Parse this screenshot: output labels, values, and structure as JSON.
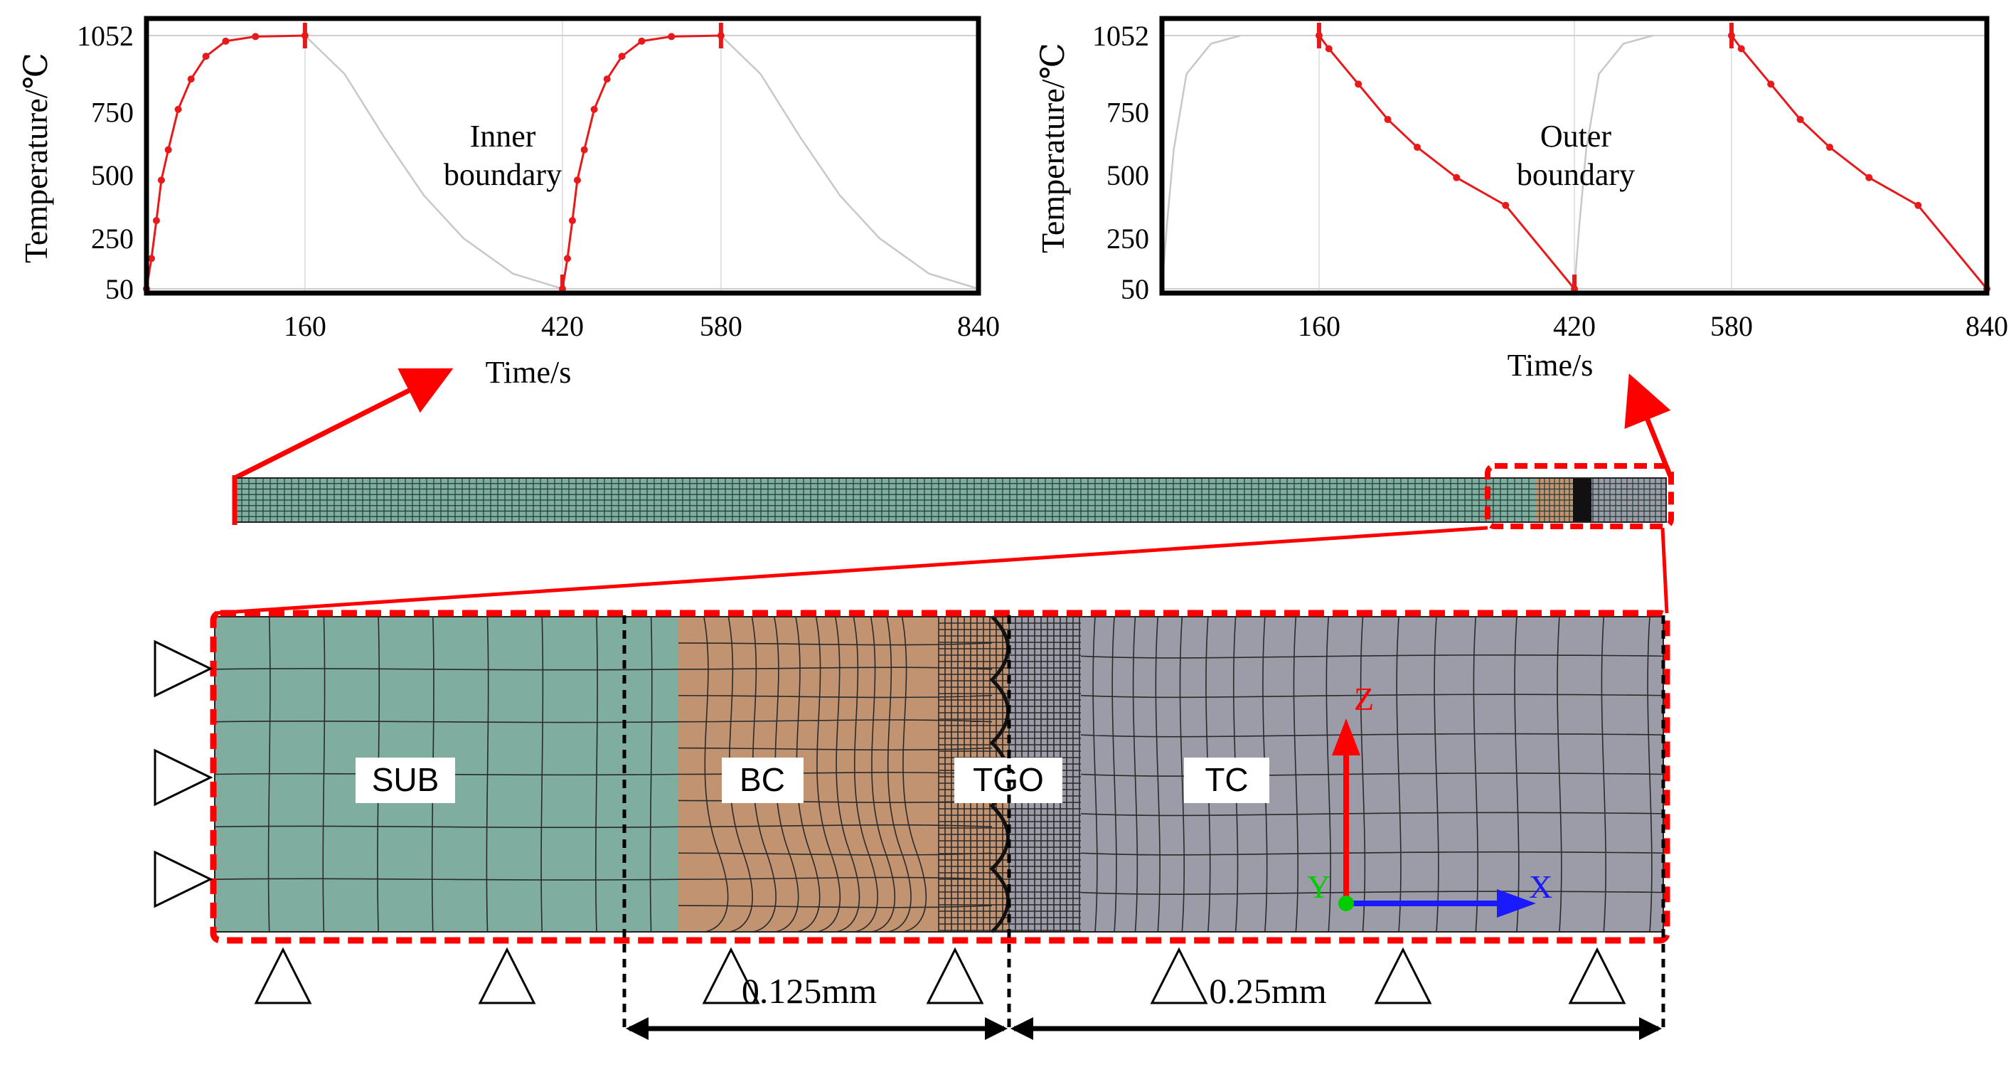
{
  "charts": [
    {
      "id": "inner",
      "ylabel": "Temperature/℃",
      "xlabel": "",
      "annotation": [
        "Inner",
        "boundary"
      ],
      "y_ticks": [
        "1052",
        "750",
        "500",
        "250",
        "50"
      ],
      "x_ticks": [
        "160",
        "420",
        "580",
        "840"
      ]
    },
    {
      "id": "outer",
      "ylabel": "Temperature/℃",
      "xlabel": "Time/s",
      "annotation": [
        "Outer",
        "boundary"
      ],
      "y_ticks": [
        "1052",
        "750",
        "500",
        "250",
        "50"
      ],
      "x_ticks": [
        "160",
        "420",
        "580",
        "840"
      ]
    }
  ],
  "shared_xlabel": "Time/s",
  "chart_data": [
    {
      "type": "line",
      "title": "",
      "xlabel": "Time/s",
      "ylabel": "Temperature/℃",
      "xlim": [
        0,
        840
      ],
      "ylim": [
        50,
        1052
      ],
      "annotation": "Inner boundary",
      "series": [
        {
          "color": "#e8191a",
          "highlight": true,
          "segments": [
            [
              [
                0,
                50
              ],
              [
                5,
                170
              ],
              [
                10,
                320
              ],
              [
                15,
                480
              ],
              [
                22,
                600
              ],
              [
                32,
                760
              ],
              [
                45,
                880
              ],
              [
                60,
                970
              ],
              [
                80,
                1030
              ],
              [
                110,
                1048
              ],
              [
                160,
                1052
              ]
            ],
            [
              [
                420,
                50
              ],
              [
                425,
                170
              ],
              [
                430,
                320
              ],
              [
                435,
                480
              ],
              [
                442,
                600
              ],
              [
                452,
                760
              ],
              [
                465,
                880
              ],
              [
                480,
                970
              ],
              [
                500,
                1030
              ],
              [
                530,
                1048
              ],
              [
                580,
                1052
              ]
            ]
          ]
        },
        {
          "color": "#c8c8c8",
          "highlight": false,
          "segments": [
            [
              [
                160,
                1052
              ],
              [
                200,
                900
              ],
              [
                240,
                650
              ],
              [
                280,
                420
              ],
              [
                320,
                250
              ],
              [
                370,
                110
              ],
              [
                420,
                50
              ]
            ],
            [
              [
                580,
                1052
              ],
              [
                620,
                900
              ],
              [
                660,
                650
              ],
              [
                700,
                420
              ],
              [
                740,
                250
              ],
              [
                790,
                110
              ],
              [
                840,
                50
              ]
            ]
          ]
        }
      ]
    },
    {
      "type": "line",
      "title": "",
      "xlabel": "Time/s",
      "ylabel": "Temperature/℃",
      "xlim": [
        0,
        840
      ],
      "ylim": [
        50,
        1052
      ],
      "annotation": "Outer boundary",
      "series": [
        {
          "color": "#e8191a",
          "highlight": true,
          "segments": [
            [
              [
                160,
                1052
              ],
              [
                170,
                1000
              ],
              [
                200,
                860
              ],
              [
                230,
                720
              ],
              [
                260,
                610
              ],
              [
                300,
                490
              ],
              [
                350,
                380
              ],
              [
                420,
                50
              ]
            ],
            [
              [
                580,
                1052
              ],
              [
                590,
                1000
              ],
              [
                620,
                860
              ],
              [
                650,
                720
              ],
              [
                680,
                610
              ],
              [
                720,
                490
              ],
              [
                770,
                380
              ],
              [
                840,
                50
              ]
            ]
          ]
        },
        {
          "color": "#c8c8c8",
          "highlight": false,
          "segments": [
            [
              [
                0,
                50
              ],
              [
                5,
                300
              ],
              [
                12,
                600
              ],
              [
                25,
                900
              ],
              [
                50,
                1020
              ],
              [
                80,
                1052
              ]
            ],
            [
              [
                420,
                50
              ],
              [
                425,
                300
              ],
              [
                432,
                600
              ],
              [
                445,
                900
              ],
              [
                470,
                1020
              ],
              [
                500,
                1052
              ]
            ]
          ]
        }
      ]
    }
  ],
  "layers": [
    {
      "key": "sub",
      "label": "SUB",
      "color": "#7fada0"
    },
    {
      "key": "bc",
      "label": "BC",
      "color": "#c19371"
    },
    {
      "key": "tgo",
      "label": "TGO",
      "color": "#c19371"
    },
    {
      "key": "tc",
      "label": "TC",
      "color": "#9b9ca8"
    }
  ],
  "dimensions": {
    "left": "0.125mm",
    "right": "0.25mm"
  },
  "axes": {
    "z": "Z",
    "x": "X",
    "y": "Y",
    "z_color": "#ff0000",
    "x_color": "#1a1aff",
    "y_color": "#00cc00"
  },
  "colors": {
    "highlight": "#ff0000",
    "mesh_line": "#2a2a2a"
  }
}
